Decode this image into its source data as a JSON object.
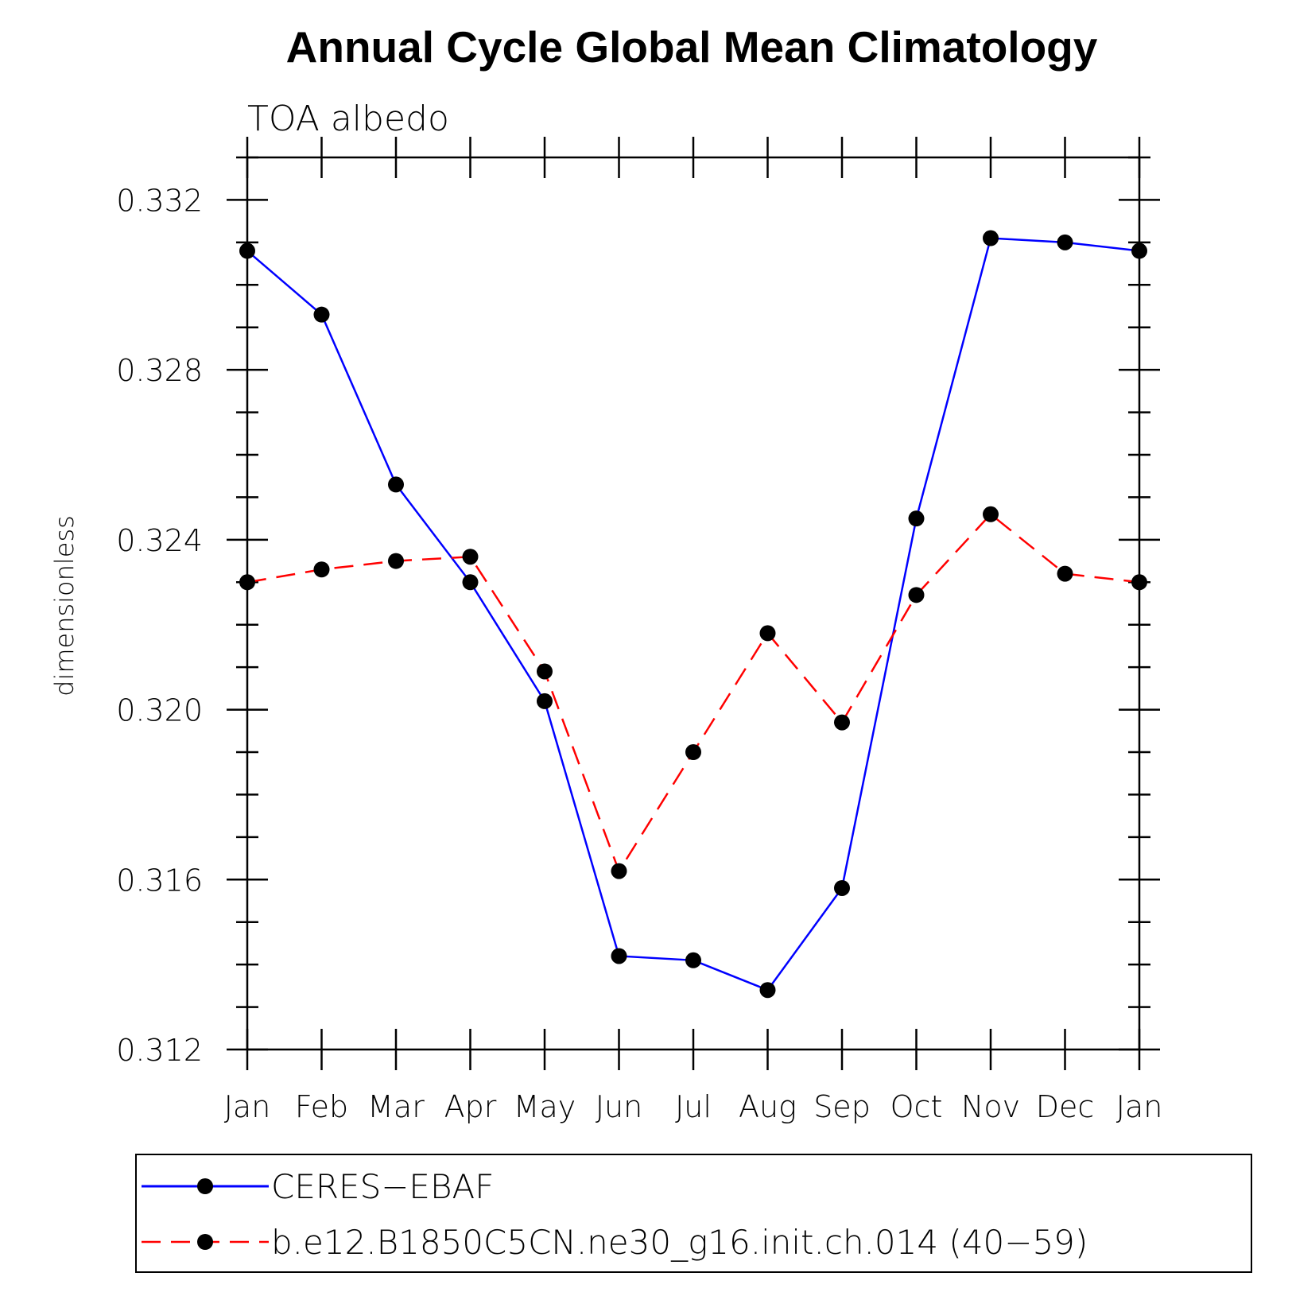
{
  "chart_data": {
    "type": "line",
    "title": "Annual Cycle Global Mean Climatology",
    "subtitle": "TOA  albedo",
    "xlabel": "",
    "ylabel": "dimensionless",
    "categories": [
      "Jan",
      "Feb",
      "Mar",
      "Apr",
      "May",
      "Jun",
      "Jul",
      "Aug",
      "Sep",
      "Oct",
      "Nov",
      "Dec",
      "Jan"
    ],
    "ylim": [
      0.312,
      0.333
    ],
    "yticks": [
      0.312,
      0.316,
      0.32,
      0.324,
      0.328,
      0.332
    ],
    "ytick_labels": [
      "0.312",
      "0.316",
      "0.320",
      "0.324",
      "0.328",
      "0.332"
    ],
    "grid": false,
    "legend_position": "bottom",
    "series": [
      {
        "name": "CERES−EBAF",
        "color": "#0000ff",
        "dash": "solid",
        "values": [
          0.3308,
          0.3293,
          0.3253,
          0.323,
          0.3202,
          0.3142,
          0.3141,
          0.3134,
          0.3158,
          0.3245,
          0.3311,
          0.331,
          0.3308
        ]
      },
      {
        "name": "b.e12.B1850C5CN.ne30_g16.init.ch.014 (40−59)",
        "color": "#ff0000",
        "dash": "dashed",
        "values": [
          0.323,
          0.3233,
          0.3235,
          0.3236,
          0.3209,
          0.3162,
          0.319,
          0.3218,
          0.3197,
          0.3227,
          0.3246,
          0.3232,
          0.323
        ]
      }
    ]
  }
}
